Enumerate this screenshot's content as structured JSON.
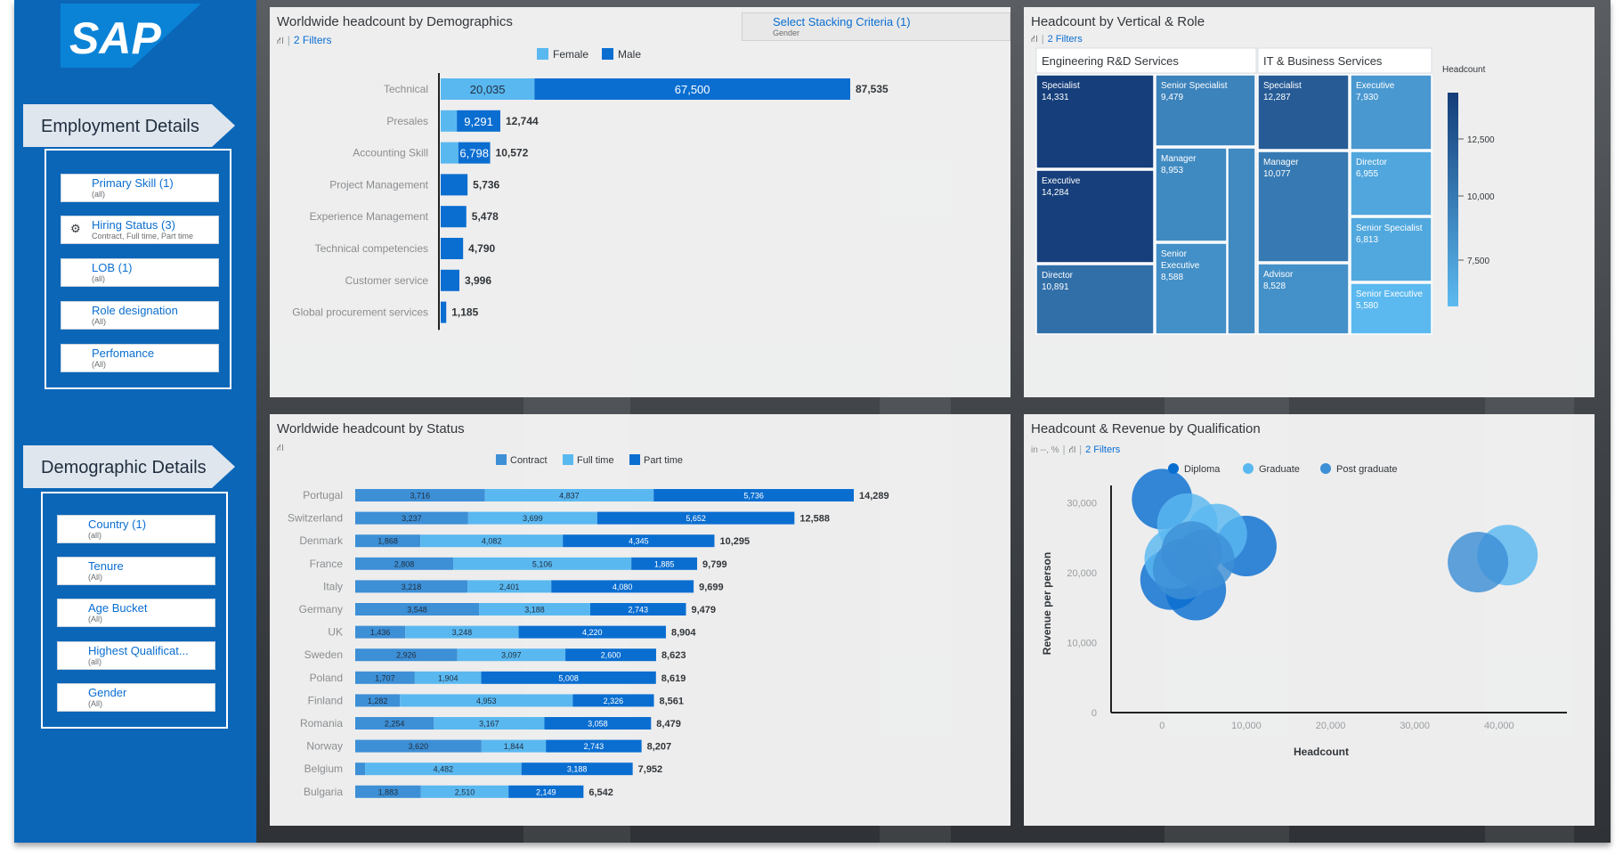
{
  "sidebar": {
    "logo_text": "SAP",
    "employment_title": "Employment Details",
    "employment_filters": [
      {
        "label": "Primary Skill (1)",
        "sub": "(all)"
      },
      {
        "label": "Hiring Status (3)",
        "sub": "Contract, Full time, Part time"
      },
      {
        "label": "LOB (1)",
        "sub": "(all)"
      },
      {
        "label": "Role designation",
        "sub": "(All)"
      },
      {
        "label": "Perfomance",
        "sub": "(All)"
      }
    ],
    "demographic_title": "Demographic Details",
    "demographic_filters": [
      {
        "label": "Country (1)",
        "sub": "(all)"
      },
      {
        "label": "Tenure",
        "sub": "(All)"
      },
      {
        "label": "Age Bucket",
        "sub": "(All)"
      },
      {
        "label": "Highest Qualificat...",
        "sub": "(all)"
      },
      {
        "label": "Gender",
        "sub": "(All)"
      }
    ]
  },
  "stack_selector": {
    "label": "Select Stacking Criteria (1)",
    "sub": "Gender"
  },
  "colors": {
    "dark": "#0a6ed1",
    "light": "#5ab8f0",
    "mid": "#3d8fd6",
    "sidebar": "#0b66b8"
  },
  "chart_data": [
    {
      "type": "bar",
      "title": "Worldwide headcount by Demographics",
      "filters_label": "2 Filters",
      "categories": [
        "Technical",
        "Presales",
        "Accounting Skill",
        "Project Management",
        "Experience Management",
        "Technical competencies",
        "Customer service",
        "Global procurement services"
      ],
      "series": [
        {
          "name": "Female",
          "values": [
            20035,
            3453,
            3774,
            null,
            null,
            null,
            null,
            null
          ]
        },
        {
          "name": "Male",
          "values": [
            67500,
            9291,
            6798,
            5736,
            5478,
            4790,
            3996,
            1185
          ]
        }
      ],
      "value_labels": [
        [
          "20,035",
          "67,500"
        ],
        [
          "",
          "9,291"
        ],
        [
          "",
          "6,798"
        ],
        [
          "",
          ""
        ],
        [
          "",
          ""
        ],
        [
          "",
          ""
        ],
        [
          "",
          ""
        ],
        [
          "",
          ""
        ]
      ],
      "totals": [
        87535,
        12744,
        10572,
        5736,
        5478,
        4790,
        3996,
        1185
      ],
      "total_labels": [
        "87,535",
        "12,744",
        "10,572",
        "5,736",
        "5,478",
        "4,790",
        "3,996",
        "1,185"
      ],
      "legend_position": "top",
      "stacked": true
    },
    {
      "type": "treemap",
      "title": "Headcount by Vertical & Role",
      "filters_label": "2 Filters",
      "groups": [
        {
          "name": "Engineering R&D Services",
          "items": [
            {
              "role": "Specialist",
              "value": 14331,
              "label": "14,331"
            },
            {
              "role": "Senior Specialist",
              "value": 9479,
              "label": "9,479"
            },
            {
              "role": "Executive",
              "value": 14284,
              "label": "14,284"
            },
            {
              "role": "Manager",
              "value": 8953,
              "label": "8,953"
            },
            {
              "role": "Senior Executive",
              "value": 8588,
              "label": "8,588"
            },
            {
              "role": "Director",
              "value": 10891,
              "label": "10,891"
            }
          ]
        },
        {
          "name": "IT & Business Services",
          "items": [
            {
              "role": "Specialist",
              "value": 12287,
              "label": "12,287"
            },
            {
              "role": "Executive",
              "value": 7930,
              "label": "7,930"
            },
            {
              "role": "Director",
              "value": 6955,
              "label": "6,955"
            },
            {
              "role": "Manager",
              "value": 10077,
              "label": "10,077"
            },
            {
              "role": "Senior Specialist",
              "value": 6813,
              "label": "6,813"
            },
            {
              "role": "Advisor",
              "value": 8528,
              "label": "8,528"
            },
            {
              "role": "Senior Executive",
              "value": 5580,
              "label": "5,580"
            }
          ]
        }
      ],
      "color_legend": {
        "title": "Headcount",
        "ticks": [
          "12,500",
          "10,000",
          "7,500"
        ],
        "min": 5500,
        "max": 14500
      }
    },
    {
      "type": "bar",
      "title": "Worldwide headcount by Status",
      "categories": [
        "Portugal",
        "Switzerland",
        "Denmark",
        "France",
        "Italy",
        "Germany",
        "UK",
        "Sweden",
        "Poland",
        "Finland",
        "Romania",
        "Norway",
        "Belgium",
        "Bulgaria"
      ],
      "series": [
        {
          "name": "Contract",
          "values": [
            3716,
            3237,
            1868,
            2808,
            3218,
            3548,
            1436,
            2926,
            1707,
            1282,
            2254,
            3620,
            282,
            1883
          ]
        },
        {
          "name": "Full time",
          "values": [
            4837,
            3699,
            4082,
            5106,
            2401,
            3188,
            3248,
            3097,
            1904,
            4953,
            3167,
            1844,
            4482,
            2510
          ]
        },
        {
          "name": "Part time",
          "values": [
            5736,
            5652,
            4345,
            1885,
            4080,
            2743,
            4220,
            2600,
            5008,
            2326,
            3058,
            2743,
            3188,
            2149
          ]
        }
      ],
      "value_labels": [
        [
          "3,716",
          "4,837",
          "5,736"
        ],
        [
          "3,237",
          "3,699",
          "5,652"
        ],
        [
          "1,868",
          "4,082",
          "4,345"
        ],
        [
          "2,808",
          "5,106",
          "1,885"
        ],
        [
          "3,218",
          "2,401",
          "4,080"
        ],
        [
          "3,548",
          "3,188",
          "2,743"
        ],
        [
          "1,436",
          "3,248",
          "4,220"
        ],
        [
          "2,926",
          "3,097",
          "2,600"
        ],
        [
          "1,707",
          "1,904",
          "5,008"
        ],
        [
          "1,282",
          "4,953",
          "2,326"
        ],
        [
          "2,254",
          "3,167",
          "3,058"
        ],
        [
          "3,620",
          "1,844",
          "2,743"
        ],
        [
          "",
          "4,482",
          "3,188"
        ],
        [
          "1,883",
          "2,510",
          "2,149"
        ]
      ],
      "total_labels": [
        "14,289",
        "12,588",
        "10,295",
        "9,799",
        "9,699",
        "9,479",
        "8,904",
        "8,623",
        "8,619",
        "8,561",
        "8,479",
        "8,207",
        "7,952",
        "6,542"
      ],
      "legend_position": "top",
      "stacked": true
    },
    {
      "type": "scatter",
      "title": "Headcount & Revenue by Qualification",
      "unit_note": "in --, %",
      "filters_label": "2 Filters",
      "xlabel": "Headcount",
      "ylabel": "Revenue per person",
      "xlim": [
        -5000,
        47000
      ],
      "ylim": [
        0,
        35000
      ],
      "x_ticks": [
        "0",
        "10,000",
        "20,000",
        "30,000",
        "40,000"
      ],
      "x_tick_values": [
        0,
        10000,
        20000,
        30000,
        40000
      ],
      "y_ticks": [
        "0",
        "10,000",
        "20,000",
        "30,000"
      ],
      "y_tick_values": [
        0,
        10000,
        20000,
        30000
      ],
      "series": [
        {
          "name": "Diploma",
          "points": [
            [
              0,
              30500
            ],
            [
              10000,
              23800
            ],
            [
              1000,
              19000
            ],
            [
              4000,
              17500
            ]
          ]
        },
        {
          "name": "Graduate",
          "points": [
            [
              3000,
              27000
            ],
            [
              6500,
              25500
            ],
            [
              41000,
              22500
            ],
            [
              1500,
              22000
            ]
          ]
        },
        {
          "name": "Post graduate",
          "points": [
            [
              3500,
              23000
            ],
            [
              37500,
              21500
            ],
            [
              2500,
              20500
            ],
            [
              5000,
              21800
            ]
          ]
        }
      ]
    }
  ]
}
